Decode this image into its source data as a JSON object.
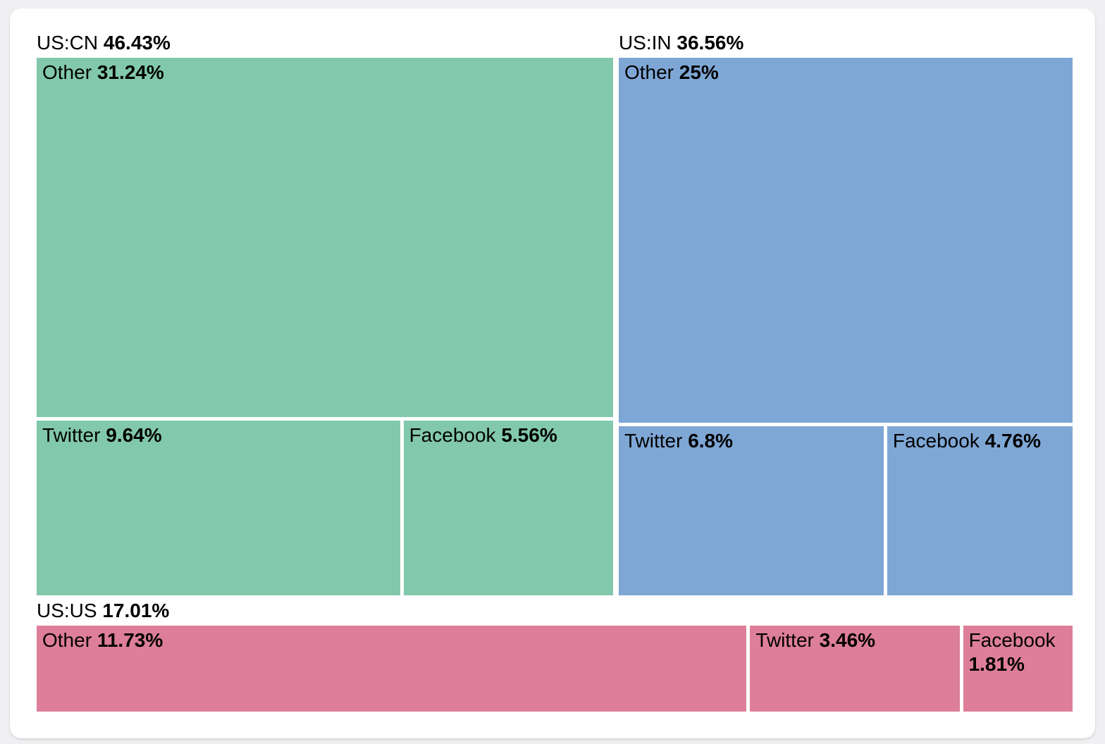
{
  "chart_data": {
    "type": "treemap",
    "title": "",
    "legend": "none",
    "unit": "%",
    "groups": [
      {
        "id": "us-cn",
        "label": "US:CN",
        "value": 46.43,
        "value_label": "46.43%",
        "color": "#82c8ad",
        "children": [
          {
            "name": "Other",
            "value": 31.24,
            "value_label": "31.24%"
          },
          {
            "name": "Twitter",
            "value": 9.64,
            "value_label": "9.64%"
          },
          {
            "name": "Facebook",
            "value": 5.56,
            "value_label": "5.56%"
          }
        ]
      },
      {
        "id": "us-in",
        "label": "US:IN",
        "value": 36.56,
        "value_label": "36.56%",
        "color": "#7fa7d5",
        "children": [
          {
            "name": "Other",
            "value": 25,
            "value_label": "25%"
          },
          {
            "name": "Twitter",
            "value": 6.8,
            "value_label": "6.8%"
          },
          {
            "name": "Facebook",
            "value": 4.76,
            "value_label": "4.76%"
          }
        ]
      },
      {
        "id": "us-us",
        "label": "US:US",
        "value": 17.01,
        "value_label": "17.01%",
        "color": "#dd7e9a",
        "children": [
          {
            "name": "Other",
            "value": 11.73,
            "value_label": "11.73%"
          },
          {
            "name": "Twitter",
            "value": 3.46,
            "value_label": "3.46%"
          },
          {
            "name": "Facebook",
            "value": 1.81,
            "value_label": "1.81%"
          }
        ]
      }
    ]
  }
}
